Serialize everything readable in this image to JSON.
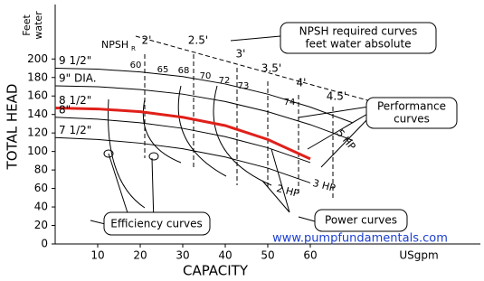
{
  "chart_data": {
    "type": "line",
    "y_label": "TOTAL HEAD",
    "y_unit": [
      "Feet",
      "water"
    ],
    "x_label": "CAPACITY",
    "x_unit": "USgpm",
    "x": [
      0,
      10,
      20,
      30,
      40,
      50,
      60,
      70
    ],
    "series": [
      {
        "name": "9 1/2\"",
        "color": "#000000",
        "values": [
          190,
          189,
          186,
          181,
          173,
          162,
          148,
          131
        ]
      },
      {
        "name": "9\" DIA.",
        "color": "#000000",
        "values": [
          171,
          170,
          167,
          162,
          154,
          143,
          129,
          112
        ]
      },
      {
        "name": "8 1/2\"",
        "color": "#e0201a",
        "values": [
          147,
          146,
          143,
          137,
          128,
          113,
          92,
          null
        ]
      },
      {
        "name": "8\"",
        "color": "#000000",
        "values": [
          137,
          135,
          131,
          125,
          116,
          104,
          88,
          null
        ]
      },
      {
        "name": "7 1/2\"",
        "color": "#000000",
        "values": [
          115,
          113,
          109,
          103,
          94,
          82,
          66,
          null
        ]
      }
    ],
    "xlim": [
      0,
      100
    ],
    "xticks": [
      10,
      20,
      30,
      40,
      50,
      60
    ],
    "ylim": [
      0,
      255
    ],
    "yticks": [
      0,
      20,
      40,
      60,
      80,
      100,
      120,
      140,
      160,
      180,
      200
    ],
    "efficiency_contours": [
      60,
      65,
      68,
      70,
      72,
      73,
      74
    ],
    "npsh_label": "NPSH",
    "npsh_sub": "R",
    "npsh_labels": [
      "2'",
      "2.5'",
      "3'",
      "3.5'",
      "4'",
      "4.5'"
    ],
    "power_labels": [
      "5 HP",
      "3 HP",
      "2 HP"
    ],
    "annotations": {
      "npsh_box": [
        "NPSH required curves",
        "feet water absolute"
      ],
      "performance": [
        "Performance",
        "curves"
      ],
      "efficiency": "Efficiency curves",
      "power": "Power curves",
      "website": "www.pumpfundamentals.com"
    }
  }
}
